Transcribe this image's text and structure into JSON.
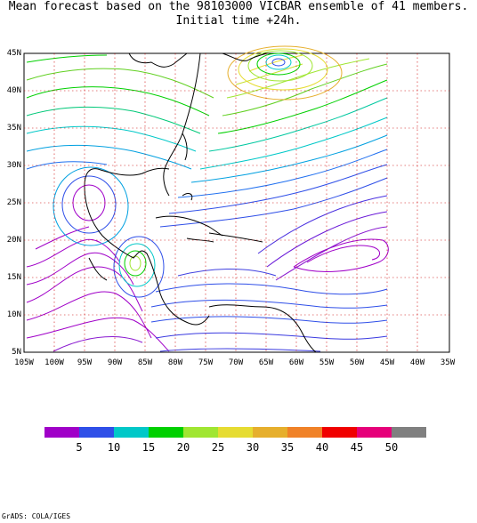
{
  "title": {
    "line1": "Mean forecast based on the 98103000 VICBAR ensemble of 41 members.",
    "line2": "Initial time +24h."
  },
  "axes": {
    "lat_labels": [
      "45N",
      "40N",
      "35N",
      "30N",
      "25N",
      "20N",
      "15N",
      "10N",
      "5N"
    ],
    "lon_labels": [
      "105W",
      "100W",
      "95W",
      "90W",
      "85W",
      "80W",
      "75W",
      "70W",
      "65W",
      "60W",
      "55W",
      "50W",
      "45W",
      "40W",
      "35W"
    ]
  },
  "colorbar": {
    "colors": [
      "#a000c8",
      "#2f4fe8",
      "#00c8c8",
      "#00d000",
      "#a0e632",
      "#e6dc32",
      "#e6af2d",
      "#f08228",
      "#f00000",
      "#e6007a",
      "#808080"
    ],
    "labels": [
      "5",
      "10",
      "15",
      "20",
      "25",
      "30",
      "35",
      "40",
      "45",
      "50"
    ]
  },
  "footer": "GrADS: COLA/IGES"
}
